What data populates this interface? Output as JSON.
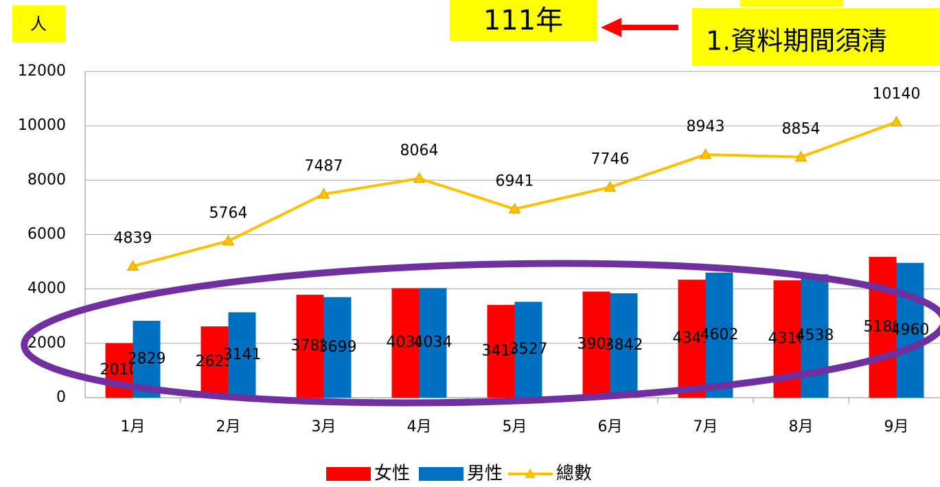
{
  "chart_data": {
    "type": "bar",
    "annotations": [
      "人",
      "111年",
      "1.資料期間須清"
    ],
    "categories": [
      "1月",
      "2月",
      "3月",
      "4月",
      "5月",
      "6月",
      "7月",
      "8月",
      "9月"
    ],
    "series": [
      {
        "name": "女性",
        "color": "#ff0000",
        "values": [
          2010,
          2623,
          3788,
          4030,
          3414,
          3904,
          4341,
          4316,
          5180
        ]
      },
      {
        "name": "男性",
        "color": "#0070c0",
        "values": [
          2829,
          3141,
          3699,
          4034,
          3527,
          3842,
          4602,
          4538,
          4960
        ]
      },
      {
        "name": "總數",
        "color": "#ffc000",
        "type": "line",
        "values": [
          4839,
          5764,
          7487,
          8064,
          6941,
          7746,
          8943,
          8854,
          10140
        ]
      }
    ],
    "ylim": [
      0,
      12000
    ],
    "yticks": [
      0,
      2000,
      4000,
      6000,
      8000,
      10000,
      12000
    ],
    "grid": true,
    "legend": "bottom"
  }
}
